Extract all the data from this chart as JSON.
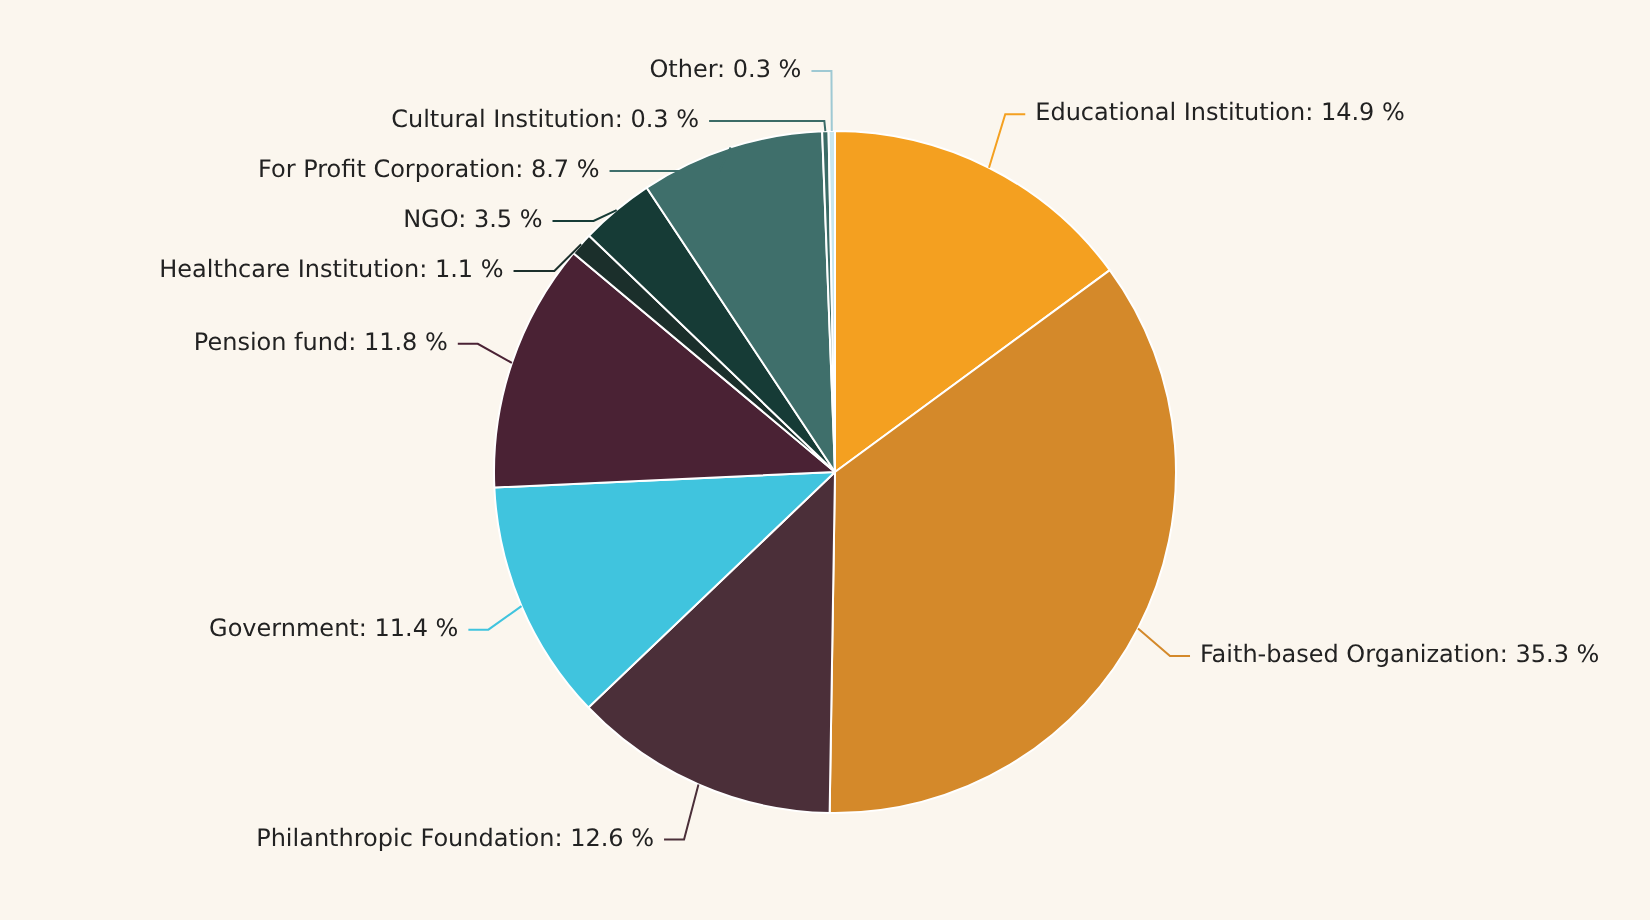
{
  "chart_data": {
    "type": "pie",
    "categories": [
      "Educational Institution",
      "Faith-based Organization",
      "Philanthropic Foundation",
      "Government",
      "Pension fund",
      "Healthcare Institution",
      "NGO",
      "For Profit Corporation",
      "Cultural Institution",
      "Other"
    ],
    "values": [
      14.9,
      35.3,
      12.6,
      11.4,
      11.8,
      1.1,
      3.5,
      8.7,
      0.3,
      0.3
    ],
    "value_labels": [
      "14.9 %",
      "35.3 %",
      "12.6 %",
      "11.4 %",
      "11.8 %",
      "1.1 %",
      "3.5 %",
      "8.7 %",
      "0.3 %",
      "0.3 %"
    ],
    "colors": [
      "#f4a020",
      "#d4892a",
      "#4b2f39",
      "#40c4de",
      "#4a2234",
      "#1b2f2b",
      "#163b36",
      "#3f6f6b",
      "#3b6b66",
      "#c8e6ee"
    ]
  }
}
